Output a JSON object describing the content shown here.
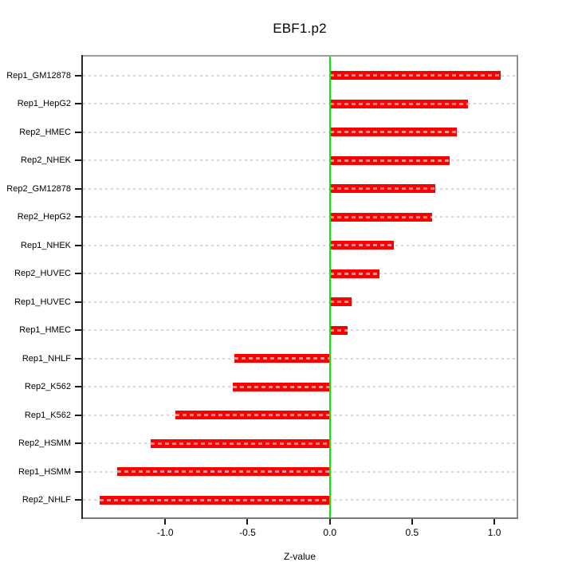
{
  "figure": {
    "background": "#ffffff"
  },
  "chart_data": {
    "type": "bar",
    "orientation": "horizontal",
    "title": "EBF1.p2",
    "xlabel": "Z-value",
    "ylabel": "",
    "categories": [
      "Rep1_GM12878",
      "Rep1_HepG2",
      "Rep2_HMEC",
      "Rep2_NHEK",
      "Rep2_GM12878",
      "Rep2_HepG2",
      "Rep1_NHEK",
      "Rep2_HUVEC",
      "Rep1_HUVEC",
      "Rep1_HMEC",
      "Rep1_NHLF",
      "Rep2_K562",
      "Rep1_K562",
      "Rep2_HSMM",
      "Rep1_HSMM",
      "Rep2_NHLF"
    ],
    "values": [
      1.04,
      0.84,
      0.77,
      0.73,
      0.64,
      0.62,
      0.39,
      0.3,
      0.13,
      0.11,
      -0.58,
      -0.59,
      -0.94,
      -1.09,
      -1.29,
      -1.4
    ],
    "xlim": [
      -1.5,
      1.135
    ],
    "xticks": [
      -1.0,
      -0.5,
      0.0,
      0.5,
      1.0
    ],
    "xtick_labels": [
      "-1.0",
      "-0.5",
      "0.0",
      "0.5",
      "1.0"
    ],
    "grid": true,
    "legend": null,
    "colors": {
      "bar": "#fa0000",
      "zero_line": "#00ee00",
      "gridline": "#d8d8d8",
      "box_top": "#9e9e9e",
      "box_right": "#8f8f8f",
      "box_bottom": "#787878",
      "axis_left": "#262626",
      "tick": "#1a1a1a",
      "text": "#000000"
    }
  }
}
